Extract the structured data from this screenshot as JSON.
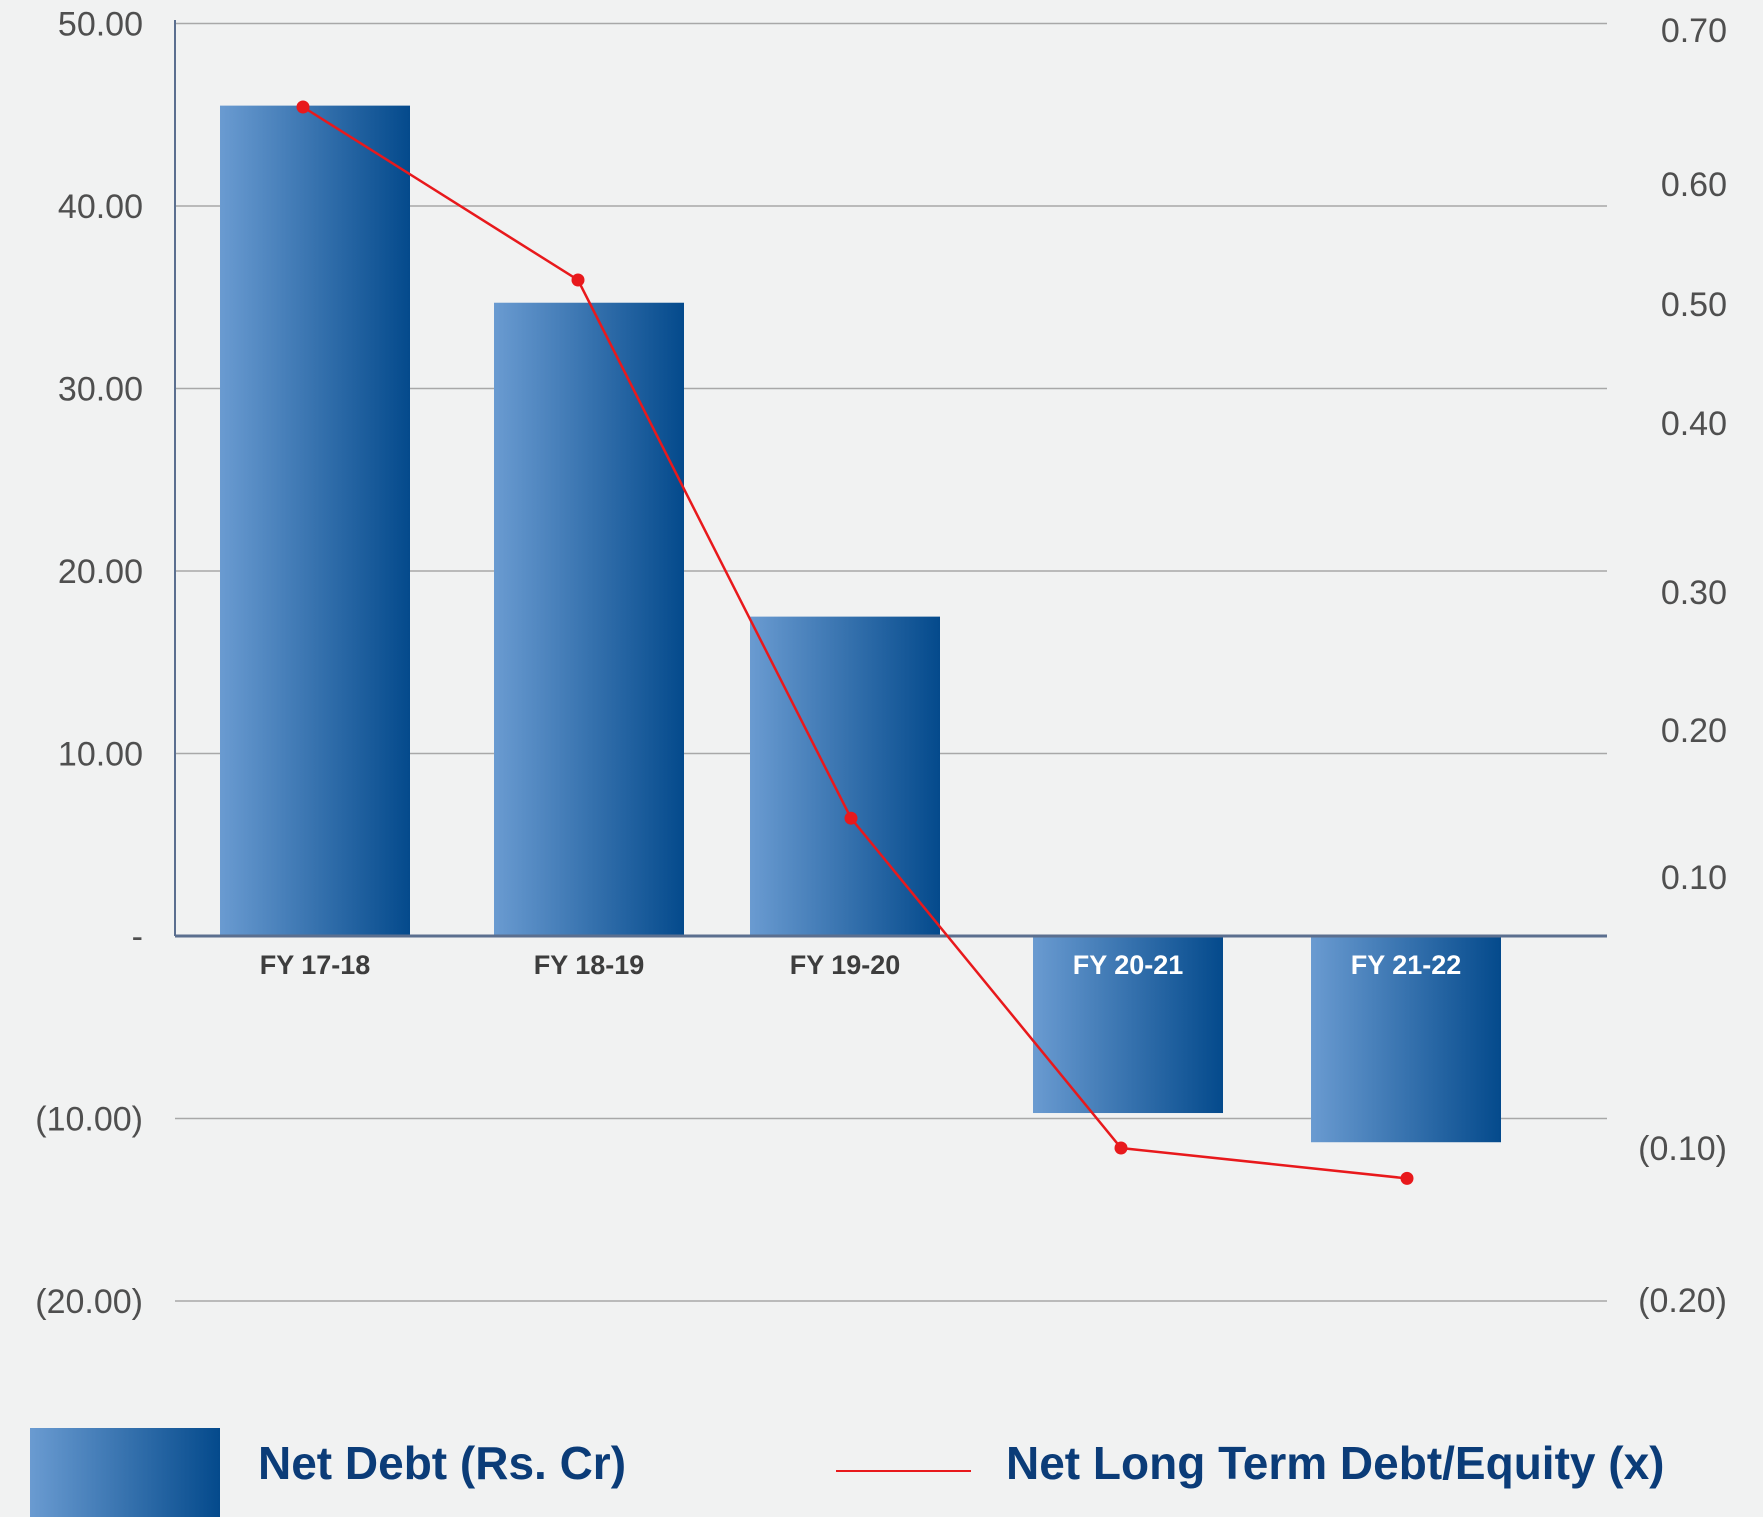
{
  "chart_data": {
    "type": "bar",
    "categories": [
      "FY 17-18",
      "FY 18-19",
      "FY 19-20",
      "FY 20-21",
      "FY 21-22"
    ],
    "series": [
      {
        "name": "Net Debt (Rs. Cr)",
        "kind": "bar",
        "axis": "left",
        "values": [
          45.5,
          34.7,
          17.5,
          -9.7,
          -11.3
        ]
      },
      {
        "name": "Net Long Term Debt/Equity (x)",
        "kind": "line",
        "axis": "right",
        "values": [
          0.65,
          0.52,
          0.14,
          -0.1,
          -0.12
        ]
      }
    ],
    "y_left": {
      "ylim": [
        -20,
        50
      ],
      "ticks": [
        50,
        40,
        30,
        20,
        10,
        0,
        -10,
        -20
      ],
      "tick_labels": [
        "50.00",
        "40.00",
        "30.00",
        "20.00",
        "10.00",
        "-",
        "(10.00)",
        "(20.00)"
      ]
    },
    "y_right": {
      "tick_labels": [
        "0.70",
        "0.60",
        "0.50",
        "0.40",
        "0.30",
        "0.20",
        "0.10",
        "(0.10)",
        "(0.20)"
      ]
    },
    "grid": true,
    "legend_placement": "bottom",
    "colors": {
      "bar_light": "#6a9bd1",
      "bar_dark": "#044a8c",
      "line": "#e8191c",
      "legend_text": "#0b3c78",
      "category_text_dark": "#3d3d3d",
      "category_text_light": "#ffffff"
    }
  },
  "legend": {
    "bar_label": "Net Debt (Rs. Cr)",
    "line_label": "Net Long Term Debt/Equity (x)"
  }
}
